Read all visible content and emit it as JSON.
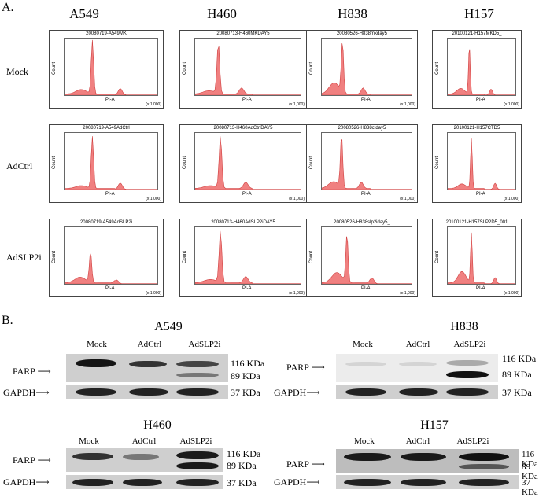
{
  "panel_a": {
    "letter": "A.",
    "cell_lines": [
      "A549",
      "H460",
      "H838",
      "H157"
    ],
    "conditions": [
      "Mock",
      "AdCtrl",
      "AdSLP2i"
    ],
    "axis_x": "PI-A",
    "axis_y": "Count",
    "scale": "(x 1,000)",
    "histograms": [
      [
        "20080719-A549MK",
        "20080713-H460MKDAY5",
        "20080526-H838mkday5",
        "20100121-H157MKD5_"
      ],
      [
        "20080719-A549AdCtrl",
        "20080713-H460AdCtrlDAY5",
        "20080526-H838ctday5",
        "20100121-H157CTD5"
      ],
      [
        "20080719-A549AdSLP2i",
        "20080713-H460AdSLP2iDAY5",
        "20080526-H838slp2iday5_",
        "20100121-H157SLP2D5_001"
      ]
    ]
  },
  "panel_b": {
    "letter": "B.",
    "lanes": [
      "Mock",
      "AdCtrl",
      "AdSLP2i"
    ],
    "parp_label": "PARP",
    "gapdh_label": "GAPDH",
    "kda_116": "116 KDa",
    "kda_89": "89 KDa",
    "kda_37": "37 KDa",
    "blots": [
      "A549",
      "H838",
      "H460",
      "H157"
    ]
  },
  "colors": {
    "histogram_fill": "#f08080",
    "histogram_line": "#d04040"
  }
}
